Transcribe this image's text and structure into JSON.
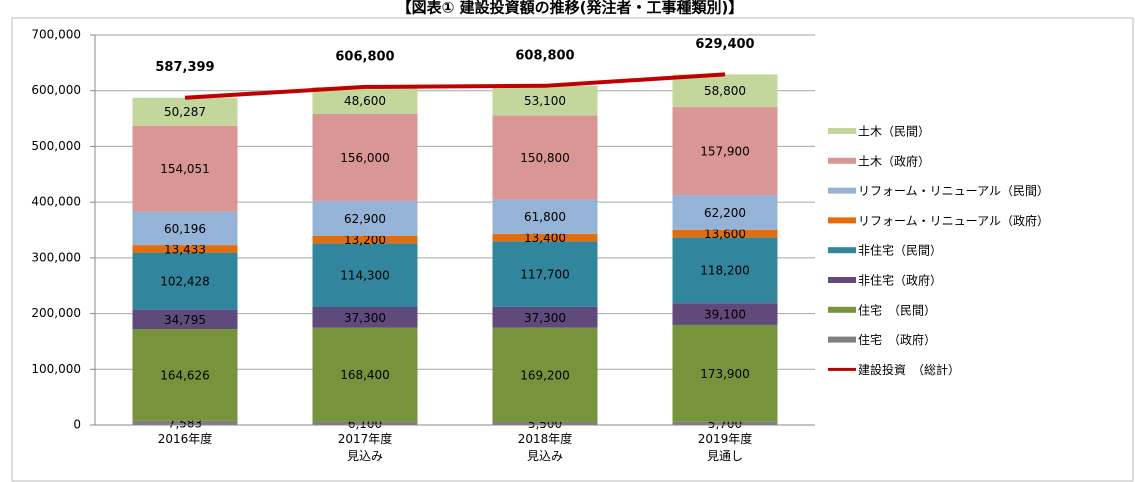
{
  "chart_data": {
    "type": "stacked_bar_line",
    "title": "【図表① 建設投資額の推移(発注者・工事種類別)】",
    "categories": [
      "2016年度",
      "2017年度\n見込み",
      "2018年度\n見込み",
      "2019年度\n見通し"
    ],
    "ylim": [
      0,
      700000
    ],
    "yticks": [
      0,
      {
        "value": 100000,
        "label": "100,000"
      },
      {
        "value": 200000,
        "label": "200,000"
      },
      {
        "value": 300000,
        "label": "300,000"
      },
      {
        "value": 400000,
        "label": "400,000"
      },
      {
        "value": 500000,
        "label": "500,000"
      },
      {
        "value": 600000,
        "label": "600,000"
      },
      {
        "value": 700000,
        "label": "700,000"
      }
    ],
    "grid": true,
    "legend": "right",
    "series": [
      {
        "name": "住宅　（政府）",
        "color": "#7f7f7f",
        "values": [
          7583,
          6100,
          5500,
          5700
        ],
        "value_labels": [
          "7,583",
          "6,100",
          "5,500",
          "5,700"
        ]
      },
      {
        "name": "住宅　（民間）",
        "color": "#77933c",
        "values": [
          164626,
          168400,
          169200,
          173900
        ],
        "value_labels": [
          "164,626",
          "168,400",
          "169,200",
          "173,900"
        ]
      },
      {
        "name": "非住宅（政府）",
        "color": "#604a7b",
        "values": [
          34795,
          37300,
          37300,
          39100
        ],
        "value_labels": [
          "34,795",
          "37,300",
          "37,300",
          "39,100"
        ]
      },
      {
        "name": "非住宅（民間）",
        "color": "#31859c",
        "values": [
          102428,
          114300,
          117700,
          118200
        ],
        "value_labels": [
          "102,428",
          "114,300",
          "117,700",
          "118,200"
        ]
      },
      {
        "name": "リフォーム・リニューアル（政府）",
        "color": "#e46c0a",
        "values": [
          13433,
          13200,
          13400,
          13600
        ],
        "value_labels": [
          "13,433",
          "13,200",
          "13,400",
          "13,600"
        ]
      },
      {
        "name": "リフォーム・リニューアル（民間）",
        "color": "#95b3d7",
        "values": [
          60196,
          62900,
          61800,
          62200
        ],
        "value_labels": [
          "60,196",
          "62,900",
          "61,800",
          "62,200"
        ]
      },
      {
        "name": "土木（政府）",
        "color": "#d99694",
        "values": [
          154051,
          156000,
          150800,
          157900
        ],
        "value_labels": [
          "154,051",
          "156,000",
          "150,800",
          "157,900"
        ]
      },
      {
        "name": "土木（民間）",
        "color": "#c3d69b",
        "values": [
          50287,
          48600,
          53100,
          58800
        ],
        "value_labels": [
          "50,287",
          "48,600",
          "53,100",
          "58,800"
        ]
      }
    ],
    "line": {
      "name": "建設投資　（総計）",
      "color": "#c00000",
      "values": [
        587399,
        606800,
        608800,
        629400
      ],
      "value_labels": [
        "587,399",
        "606,800",
        "608,800",
        "629,400"
      ]
    }
  }
}
